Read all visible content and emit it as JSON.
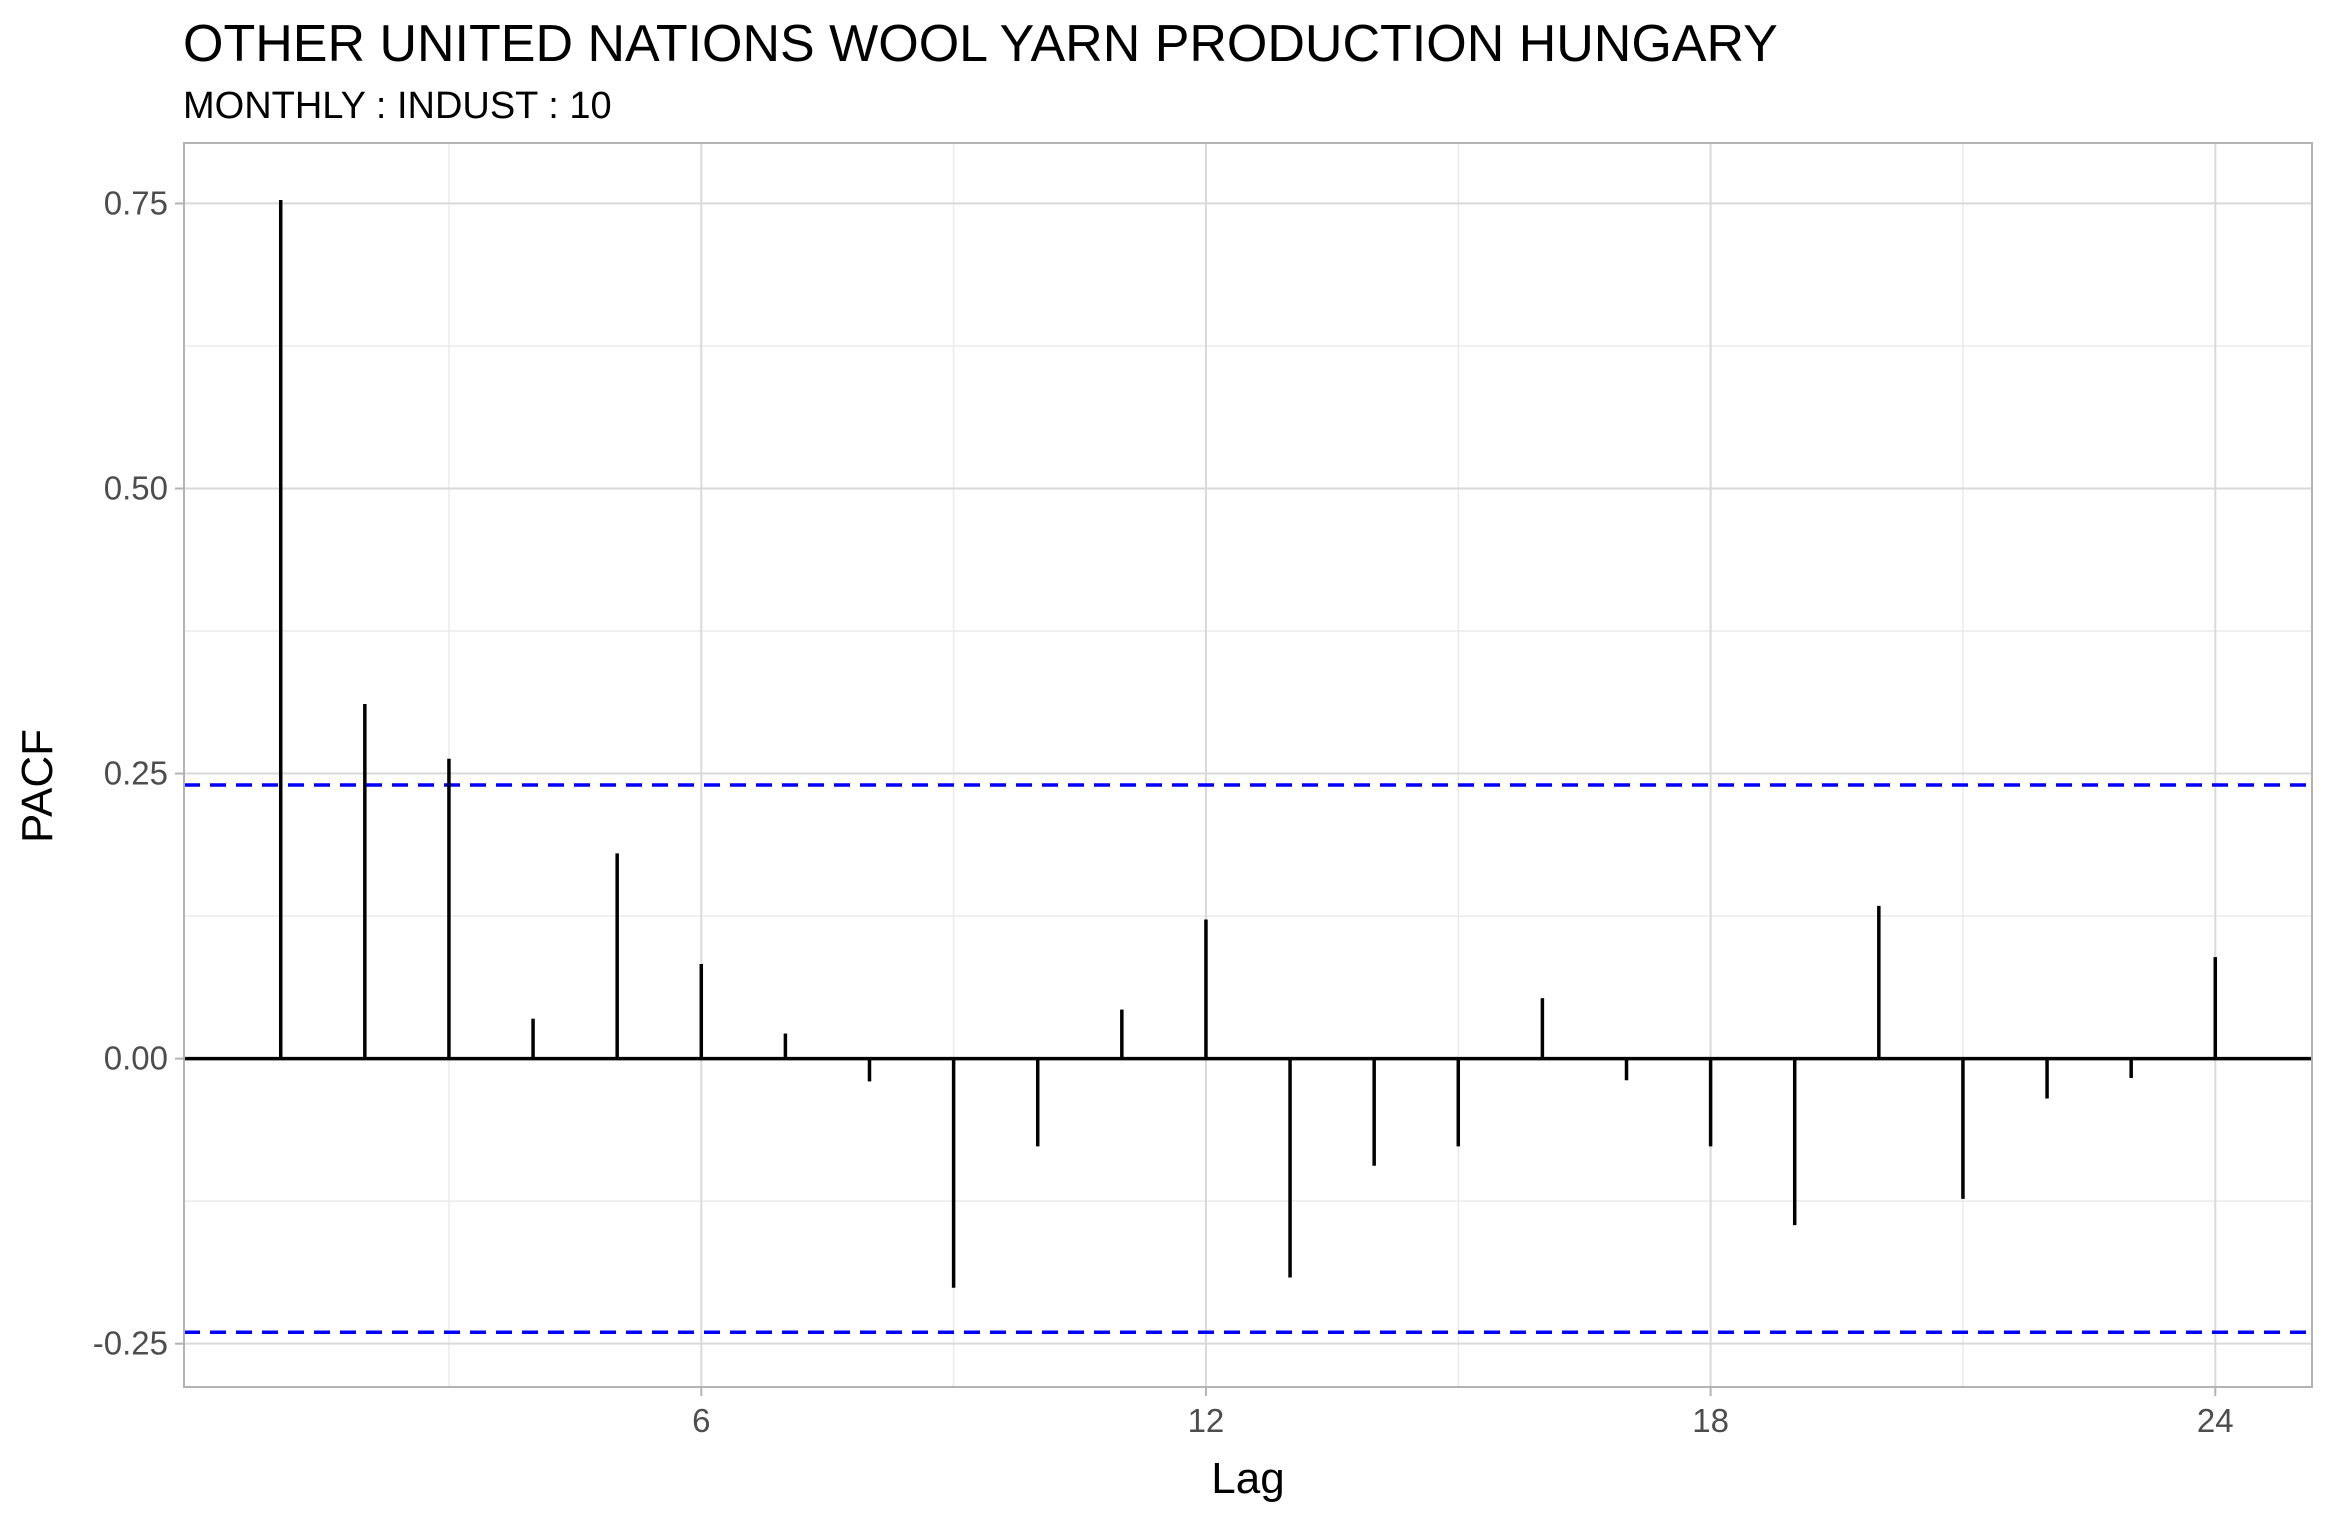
{
  "chart_data": {
    "type": "bar",
    "title": "OTHER UNITED NATIONS WOOL YARN PRODUCTION HUNGARY",
    "subtitle": "MONTHLY : INDUST : 10",
    "xlabel": "Lag",
    "ylabel": "PACF",
    "x": [
      1,
      2,
      3,
      4,
      5,
      6,
      7,
      8,
      9,
      10,
      11,
      12,
      13,
      14,
      15,
      16,
      17,
      18,
      19,
      20,
      21,
      22,
      23,
      24
    ],
    "values": [
      0.753,
      0.311,
      0.263,
      0.035,
      0.18,
      0.083,
      0.022,
      -0.02,
      -0.201,
      -0.077,
      0.043,
      0.122,
      -0.192,
      -0.094,
      -0.077,
      0.053,
      -0.019,
      -0.077,
      -0.146,
      0.134,
      -0.123,
      -0.035,
      -0.017,
      0.089
    ],
    "confidence_limit": 0.24,
    "xlim": [
      -0.15,
      25.15
    ],
    "ylim": [
      -0.288,
      0.803
    ],
    "x_ticks": [
      6,
      12,
      18,
      24
    ],
    "x_tick_labels": [
      "6",
      "12",
      "18",
      "24"
    ],
    "y_ticks": [
      -0.25,
      0,
      0.25,
      0.5,
      0.75
    ],
    "y_tick_labels": [
      "-0.25",
      "0.00",
      "0.25",
      "0.50",
      "0.75"
    ],
    "grid": true,
    "colors": {
      "bar": "#000000",
      "confidence_line": "#0000ff",
      "grid_major": "#d9d9d9",
      "grid_minor": "#ebebeb",
      "panel_border": "#b3b3b3"
    }
  }
}
